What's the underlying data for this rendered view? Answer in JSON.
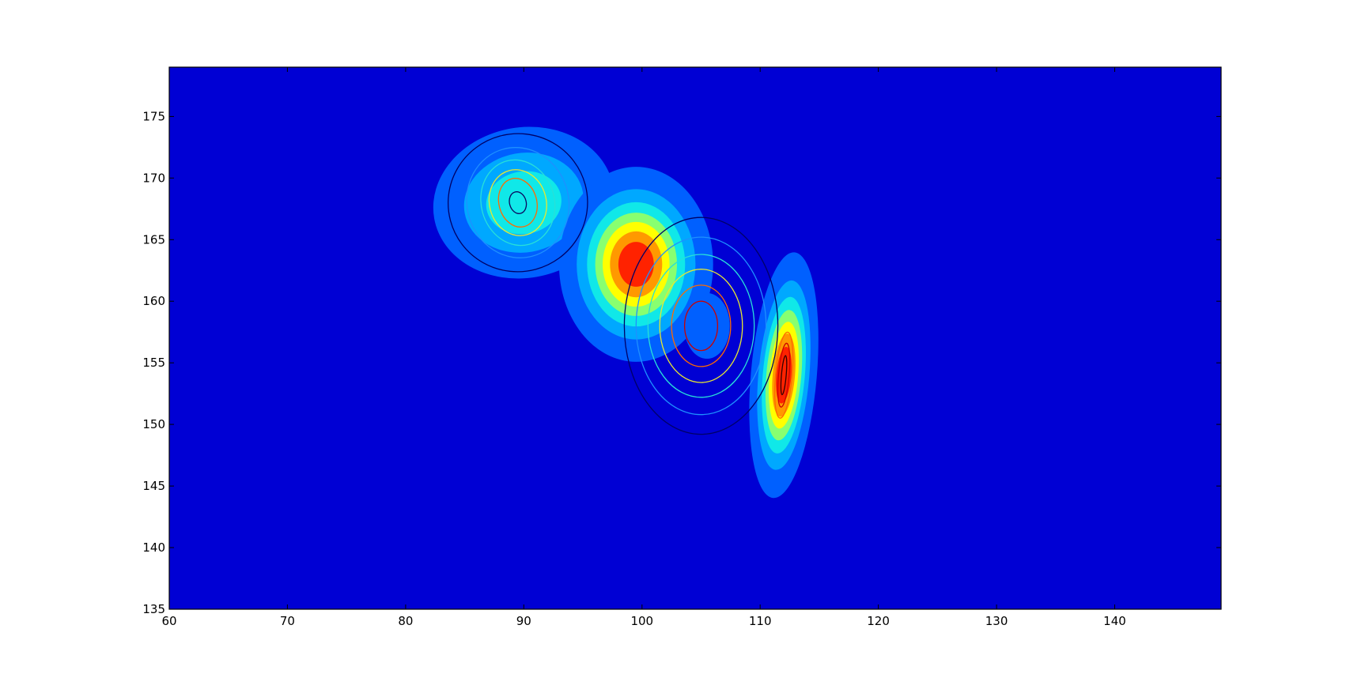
{
  "chart_data": {
    "type": "heatmap",
    "subtype": "filled contour with overlaid line contours",
    "title": "",
    "xlabel": "",
    "ylabel": "",
    "xlim": [
      60,
      149
    ],
    "ylim": [
      135,
      179
    ],
    "x_ticks": [
      60,
      70,
      80,
      90,
      100,
      110,
      120,
      130,
      140
    ],
    "y_ticks": [
      135,
      140,
      145,
      150,
      155,
      160,
      165,
      170,
      175
    ],
    "x_tick_labels": [
      "60",
      "70",
      "80",
      "90",
      "100",
      "110",
      "120",
      "130",
      "140"
    ],
    "y_tick_labels": [
      "135",
      "140",
      "145",
      "150",
      "155",
      "160",
      "165",
      "170",
      "175"
    ],
    "grid": false,
    "colormap": "jet",
    "background_color": "#0000d4",
    "filled_peaks": [
      {
        "center": [
          90,
          168
        ],
        "sigma_x": 3.9,
        "sigma_y": 3.1,
        "rotation_deg": -10,
        "peak_level": 3
      },
      {
        "center": [
          99.5,
          163
        ],
        "sigma_x": 2.8,
        "sigma_y": 3.4,
        "rotation_deg": 0,
        "peak_level": 7
      },
      {
        "center": [
          105.5,
          158
        ],
        "sigma_x": 1.3,
        "sigma_y": 1.8,
        "rotation_deg": 0,
        "peak_level": 1
      },
      {
        "center": [
          112,
          154
        ],
        "sigma_x": 1.2,
        "sigma_y": 4.3,
        "rotation_deg": 5,
        "peak_level": 7
      }
    ],
    "line_contour_groups": [
      {
        "center": [
          89.5,
          168
        ],
        "rx": [
          0.7,
          1.6,
          2.4,
          3.1,
          4.3,
          5.9
        ],
        "ry": [
          0.9,
          2.0,
          2.7,
          3.5,
          4.5,
          5.6
        ],
        "rotation_deg": -15,
        "colors": [
          "#0a0a60",
          "#ff6a00",
          "#e8e830",
          "#28e0d8",
          "#1e90ff",
          "#000066"
        ]
      },
      {
        "center": [
          105,
          158
        ],
        "rx": [
          1.4,
          2.5,
          3.5,
          4.5,
          5.5,
          6.5
        ],
        "ry": [
          2.0,
          3.3,
          4.6,
          5.8,
          7.2,
          8.8
        ],
        "rotation_deg": 0,
        "colors": [
          "#cc0000",
          "#ff6a00",
          "#e8e830",
          "#28e0d8",
          "#1e90ff",
          "#000066"
        ]
      },
      {
        "center": [
          112,
          154
        ],
        "rx": [
          0.2,
          0.45,
          0.7
        ],
        "ry": [
          1.6,
          2.6,
          3.5
        ],
        "rotation_deg": 5,
        "colors": [
          "#330000",
          "#cc0000",
          "#ff6a00"
        ]
      }
    ],
    "level_colors": [
      "#0000d4",
      "#0060ff",
      "#00a8ff",
      "#10e8e8",
      "#88ff70",
      "#ffff00",
      "#ff9900",
      "#ff2200",
      "#b00000"
    ]
  }
}
